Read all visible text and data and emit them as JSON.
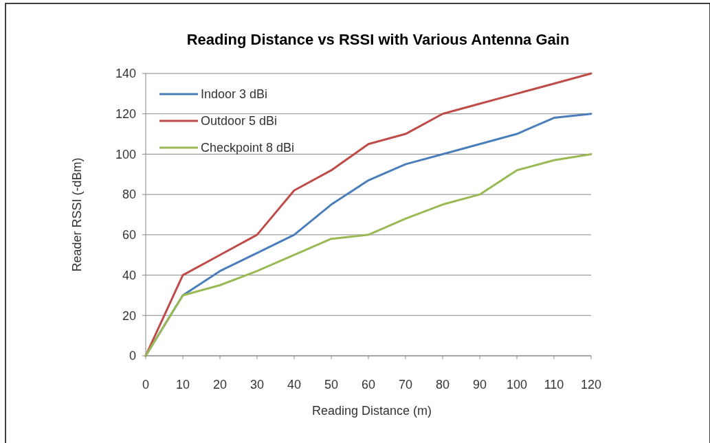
{
  "chart_data": {
    "type": "line",
    "title": "Reading Distance vs RSSI with Various Antenna Gain",
    "xlabel": "Reading Distance (m)",
    "ylabel": "Reader RSSI (-dBm)",
    "x": [
      0,
      10,
      20,
      30,
      40,
      50,
      60,
      70,
      80,
      90,
      100,
      110,
      120
    ],
    "series": [
      {
        "name": "Indoor 3 dBi",
        "color": "#4a7ebb",
        "values": [
          0,
          30,
          42,
          51,
          60,
          75,
          87,
          95,
          100,
          105,
          110,
          118,
          120
        ]
      },
      {
        "name": "Outdoor 5 dBi",
        "color": "#be4b48",
        "values": [
          0,
          40,
          50,
          60,
          82,
          92,
          105,
          110,
          120,
          125,
          130,
          135,
          140
        ]
      },
      {
        "name": "Checkpoint 8 dBi",
        "color": "#98b954",
        "values": [
          0,
          30,
          35,
          42,
          50,
          58,
          60,
          68,
          75,
          80,
          92,
          97,
          100
        ]
      }
    ],
    "xlim": [
      0,
      120
    ],
    "xticks": [
      0,
      10,
      20,
      30,
      40,
      50,
      60,
      70,
      80,
      90,
      100,
      110,
      120
    ],
    "ylim": [
      0,
      140
    ],
    "yticks": [
      0,
      20,
      40,
      60,
      80,
      100,
      120,
      140
    ],
    "grid": "y",
    "legend": "top left",
    "marker": "none",
    "line_style": "solid"
  }
}
